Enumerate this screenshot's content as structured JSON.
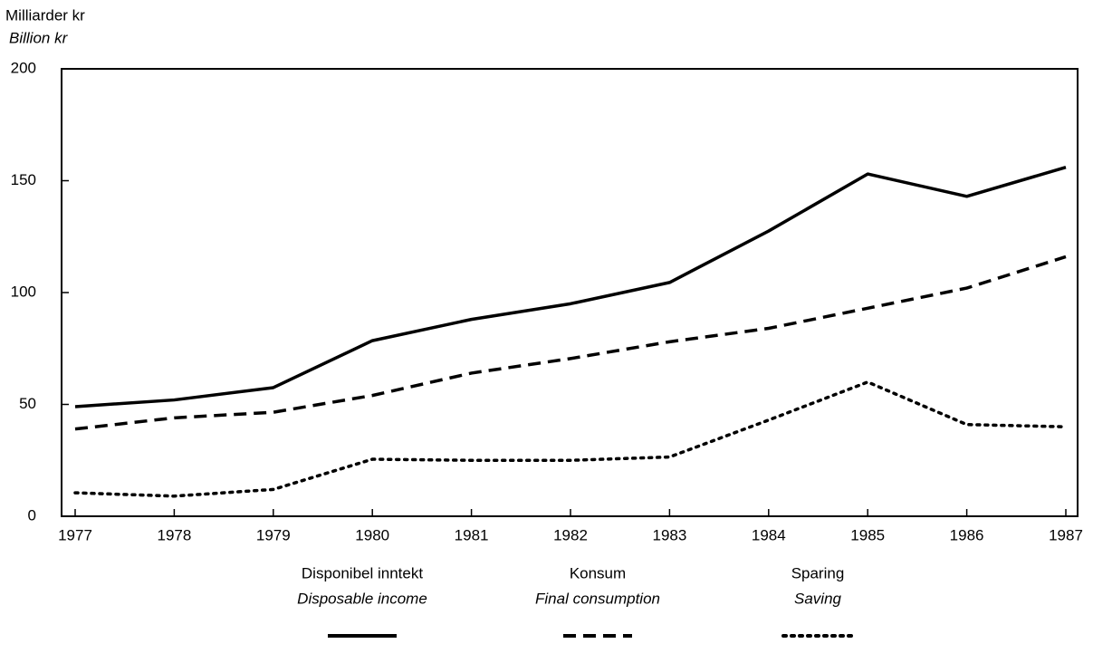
{
  "chart_data": {
    "type": "line",
    "y_label": "Milliarder kr",
    "y_label_en": "Billion kr",
    "categories": [
      "1977",
      "1978",
      "1979",
      "1980",
      "1981",
      "1982",
      "1983",
      "1984",
      "1985",
      "1986",
      "1987"
    ],
    "series": [
      {
        "name": "Disponibel inntekt",
        "name_en": "Disposable income",
        "color": "#000000",
        "dash": "solid",
        "values": [
          49,
          52,
          57.5,
          78.5,
          88,
          95,
          104.5,
          127.5,
          153,
          143,
          156
        ]
      },
      {
        "name": "Konsum",
        "name_en": "Final consumption",
        "color": "#000000",
        "dash": "dashed",
        "values": [
          39,
          44,
          46.5,
          54,
          64,
          70.5,
          78,
          84,
          93,
          102,
          116
        ]
      },
      {
        "name": "Sparing",
        "name_en": "Saving",
        "color": "#000000",
        "dash": "dotted",
        "values": [
          10.5,
          9,
          12,
          25.5,
          25,
          25,
          26.5,
          43,
          60,
          41,
          40
        ]
      }
    ],
    "ylim": [
      0,
      200
    ],
    "yticks": [
      0,
      50,
      100,
      150,
      200
    ],
    "grid": false,
    "legend": "bottom"
  }
}
